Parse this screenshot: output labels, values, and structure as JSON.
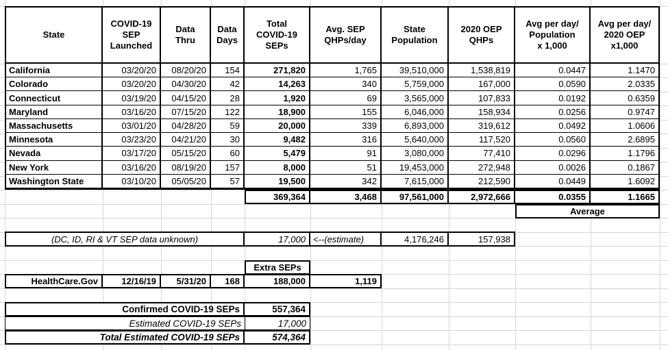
{
  "colors": {
    "border": "#000000",
    "gridline": "#d6d6d6",
    "background": "#ffffff",
    "text": "#000000"
  },
  "table": {
    "headers": {
      "state": "State",
      "launched": "COVID-19\nSEP\nLaunched",
      "thru": "Data\nThru",
      "days": "Data\nDays",
      "total": "Total\nCOVID-19\nSEPs",
      "avg": "Avg. SEP\nQHPs/day",
      "population": "State\nPopulation",
      "oep": "2020 OEP\nQHPs",
      "avg_pop": "Avg per day/\nPopulation\nx 1,000",
      "avg_oep": "Avg per day/\n2020 OEP\nx1,000"
    },
    "rows": [
      {
        "state": "California",
        "launched": "03/20/20",
        "thru": "08/20/20",
        "days": "154",
        "total": "271,820",
        "avg": "1,765",
        "population": "39,510,000",
        "oep": "1,538,819",
        "avg_pop": "0.0447",
        "avg_oep": "1.1470"
      },
      {
        "state": "Colorado",
        "launched": "03/20/20",
        "thru": "04/30/20",
        "days": "42",
        "total": "14,263",
        "avg": "340",
        "population": "5,759,000",
        "oep": "167,000",
        "avg_pop": "0.0590",
        "avg_oep": "2.0335"
      },
      {
        "state": "Connecticut",
        "launched": "03/19/20",
        "thru": "04/15/20",
        "days": "28",
        "total": "1,920",
        "avg": "69",
        "population": "3,565,000",
        "oep": "107,833",
        "avg_pop": "0.0192",
        "avg_oep": "0.6359"
      },
      {
        "state": "Maryland",
        "launched": "03/16/20",
        "thru": "07/15/20",
        "days": "122",
        "total": "18,900",
        "avg": "155",
        "population": "6,046,000",
        "oep": "158,934",
        "avg_pop": "0.0256",
        "avg_oep": "0.9747"
      },
      {
        "state": "Massachusetts",
        "launched": "03/01/20",
        "thru": "04/28/20",
        "days": "59",
        "total": "20,000",
        "avg": "339",
        "population": "6,893,000",
        "oep": "319,612",
        "avg_pop": "0.0492",
        "avg_oep": "1.0606"
      },
      {
        "state": "Minnesota",
        "launched": "03/23/20",
        "thru": "04/21/20",
        "days": "30",
        "total": "9,482",
        "avg": "316",
        "population": "5,640,000",
        "oep": "117,520",
        "avg_pop": "0.0560",
        "avg_oep": "2.6895"
      },
      {
        "state": "Nevada",
        "launched": "03/17/20",
        "thru": "05/15/20",
        "days": "60",
        "total": "5,479",
        "avg": "91",
        "population": "3,080,000",
        "oep": "77,410",
        "avg_pop": "0.0296",
        "avg_oep": "1.1796"
      },
      {
        "state": "New York",
        "launched": "03/16/20",
        "thru": "08/19/20",
        "days": "157",
        "total": "8,000",
        "avg": "51",
        "population": "19,453,000",
        "oep": "272,948",
        "avg_pop": "0.0026",
        "avg_oep": "0.1867"
      },
      {
        "state": "Washington State",
        "launched": "03/10/20",
        "thru": "05/05/20",
        "days": "57",
        "total": "19,500",
        "avg": "342",
        "population": "7,615,000",
        "oep": "212,590",
        "avg_pop": "0.0449",
        "avg_oep": "1.6092"
      }
    ],
    "totals": {
      "total": "369,364",
      "avg": "3,468",
      "population": "97,561,000",
      "oep": "2,972,666",
      "avg_pop": "0.0355",
      "avg_oep": "1.1665"
    },
    "average_label": "Average"
  },
  "estimate_row": {
    "note": "(DC, ID, RI & VT SEP data unknown)",
    "total": "17,000",
    "arrow": "<--(estimate)",
    "population": "4,176,246",
    "oep": "157,938"
  },
  "extra_seps": {
    "label": "Extra SEPs",
    "row": {
      "name": "HealthCare.Gov",
      "launched": "12/16/19",
      "thru": "5/31/20",
      "days": "168",
      "total": "188,000",
      "avg": "1,119"
    }
  },
  "summary": {
    "confirmed": {
      "label": "Confirmed COVID-19 SEPs",
      "value": "557,364"
    },
    "estimated": {
      "label": "Estimated COVID-19 SEPs",
      "value": "17,000"
    },
    "total": {
      "label": "Total Estimated COVID-19 SEPs",
      "value": "574,364"
    }
  }
}
